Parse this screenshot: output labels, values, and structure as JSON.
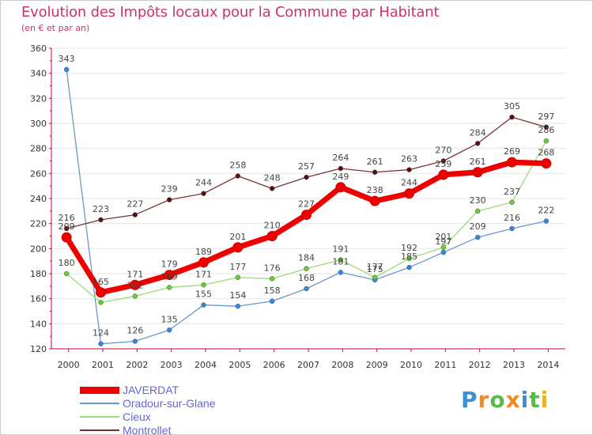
{
  "header": {
    "title": "Evolution des Impôts locaux pour la Commune par Habitant",
    "subtitle": "(en € et par an)"
  },
  "logo": {
    "text": "Proxiti"
  },
  "colors": {
    "title": "#cc3366",
    "axis": "#cc0033",
    "grid": "#e6e6e6",
    "legend_text": "#6666cc"
  },
  "chart_data": {
    "type": "line",
    "title": "Evolution des Impôts locaux pour la Commune par Habitant",
    "subtitle": "(en € et par an)",
    "xlabel": "",
    "ylabel": "",
    "x": [
      "2000",
      "2001",
      "2002",
      "2003",
      "2004",
      "2005",
      "2006",
      "2007",
      "2008",
      "2009",
      "2010",
      "2011",
      "2012",
      "2013",
      "2014"
    ],
    "ylim": [
      120,
      360
    ],
    "yticks": [
      120,
      140,
      160,
      180,
      200,
      220,
      240,
      260,
      280,
      300,
      320,
      340,
      360
    ],
    "grid": true,
    "legend_position": "bottom-left",
    "series": [
      {
        "name": "JAVERDAT",
        "color": "#ee0000",
        "width": "thick",
        "values": [
          209,
          165,
          171,
          179,
          189,
          201,
          210,
          227,
          249,
          238,
          244,
          259,
          261,
          269,
          268
        ],
        "labels": [
          "209",
          "165",
          "171",
          "179",
          "189",
          "201",
          "210",
          "227",
          "249",
          "238",
          "244",
          "259",
          "261",
          "269",
          "268"
        ]
      },
      {
        "name": "Oradour-sur-Glane",
        "color": "#6699cc",
        "point_color": "#3388dd",
        "width": "thin",
        "values": [
          343,
          124,
          126,
          135,
          155,
          154,
          158,
          168,
          181,
          175,
          185,
          197,
          209,
          216,
          222
        ],
        "labels": [
          "343",
          "124",
          "126",
          "135",
          "155",
          "154",
          "158",
          "168",
          "181",
          "175",
          "185",
          "197",
          "209",
          "216",
          "222"
        ]
      },
      {
        "name": "Cieux",
        "color": "#99dd77",
        "point_color": "#66cc33",
        "width": "thin",
        "values": [
          180,
          157,
          162,
          169,
          171,
          177,
          176,
          184,
          191,
          177,
          192,
          201,
          230,
          237,
          286
        ],
        "labels": [
          "180",
          "",
          "162",
          "169",
          "171",
          "177",
          "176",
          "184",
          "191",
          "177",
          "192",
          "201",
          "230",
          "237",
          "286"
        ]
      },
      {
        "name": "Montrollet",
        "color": "#773333",
        "point_color": "#551111",
        "width": "thin",
        "values": [
          216,
          223,
          227,
          239,
          244,
          258,
          248,
          257,
          264,
          261,
          263,
          270,
          284,
          305,
          297
        ],
        "labels": [
          "216",
          "223",
          "227",
          "239",
          "244",
          "258",
          "248",
          "257",
          "264",
          "261",
          "263",
          "270",
          "284",
          "305",
          "297"
        ]
      }
    ]
  }
}
